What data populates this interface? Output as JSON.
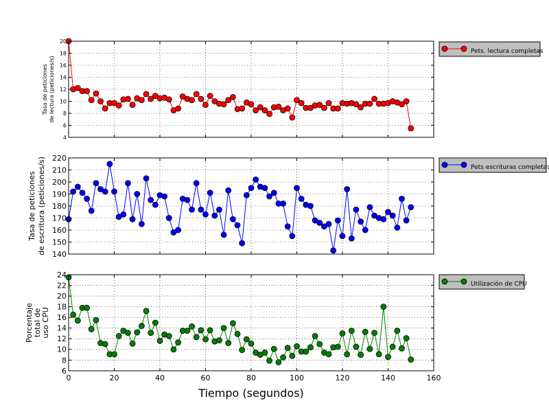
{
  "xlabel": "Tiempo (segundos)",
  "x_ticks": [
    0,
    20,
    40,
    60,
    80,
    100,
    120,
    140,
    160
  ],
  "chart_data": [
    {
      "type": "line",
      "ylabel": [
        "Tasa de peticiones",
        "de lectura (peticiones/s)"
      ],
      "xlim": [
        0,
        160
      ],
      "ylim": [
        4,
        20
      ],
      "y_ticks": [
        4,
        6,
        8,
        10,
        12,
        14,
        16,
        18,
        20
      ],
      "grid": true,
      "legend_placement": "right",
      "series": [
        {
          "name": "Pets. lectura completas",
          "color": "#ff0000",
          "x": [
            0,
            2,
            4,
            6,
            8,
            10,
            12,
            14,
            16,
            18,
            20,
            22,
            24,
            26,
            28,
            30,
            32,
            34,
            36,
            38,
            40,
            42,
            44,
            46,
            48,
            50,
            52,
            54,
            56,
            58,
            60,
            62,
            64,
            66,
            68,
            70,
            72,
            74,
            76,
            78,
            80,
            82,
            84,
            86,
            88,
            90,
            92,
            94,
            96,
            98,
            100,
            102,
            104,
            106,
            108,
            110,
            112,
            114,
            116,
            118,
            120,
            122,
            124,
            126,
            128,
            130,
            132,
            134,
            136,
            138,
            140,
            142,
            144,
            146,
            148,
            150
          ],
          "y": [
            20,
            12.0,
            12.2,
            11.7,
            11.7,
            10.2,
            11.3,
            10.0,
            8.8,
            9.7,
            9.7,
            9.3,
            10.3,
            10.4,
            9.4,
            10.5,
            10.2,
            11.2,
            10.4,
            10.9,
            10.5,
            10.6,
            10.3,
            8.5,
            8.8,
            10.8,
            10.4,
            10.2,
            11.2,
            10.4,
            9.4,
            10.9,
            10.0,
            9.6,
            9.5,
            10.2,
            10.7,
            8.7,
            8.8,
            9.8,
            9.5,
            8.5,
            9.0,
            8.5,
            7.9,
            9.0,
            9.1,
            8.5,
            8.8,
            7.3,
            10.2,
            9.7,
            8.9,
            8.9,
            9.3,
            9.4,
            8.9,
            9.7,
            8.8,
            8.8,
            9.7,
            9.6,
            9.7,
            9.5,
            9.0,
            9.6,
            9.6,
            10.4,
            9.6,
            9.6,
            9.7,
            10.0,
            9.8,
            9.5,
            10.0,
            5.5
          ]
        }
      ]
    },
    {
      "type": "line",
      "ylabel": [
        "Tasa de peticiones",
        "de escritura (peticiones/s)"
      ],
      "xlim": [
        0,
        160
      ],
      "ylim": [
        140,
        220
      ],
      "y_ticks": [
        140,
        150,
        160,
        170,
        180,
        190,
        200,
        210,
        220
      ],
      "grid": true,
      "legend_placement": "right",
      "series": [
        {
          "name": "Pets escrituras completas",
          "color": "#0000ff",
          "x": [
            0,
            2,
            4,
            6,
            8,
            10,
            12,
            14,
            16,
            18,
            20,
            22,
            24,
            26,
            28,
            30,
            32,
            34,
            36,
            38,
            40,
            42,
            44,
            46,
            48,
            50,
            52,
            54,
            56,
            58,
            60,
            62,
            64,
            66,
            68,
            70,
            72,
            74,
            76,
            78,
            80,
            82,
            84,
            86,
            88,
            90,
            92,
            94,
            96,
            98,
            100,
            102,
            104,
            106,
            108,
            110,
            112,
            114,
            116,
            118,
            120,
            122,
            124,
            126,
            128,
            130,
            132,
            134,
            136,
            138,
            140,
            142,
            144,
            146,
            148,
            150
          ],
          "y": [
            169,
            192,
            196,
            191,
            186,
            176,
            199,
            194,
            192,
            215,
            192,
            171,
            173,
            199,
            169,
            190,
            165,
            203,
            185,
            181,
            189,
            188,
            170,
            158,
            160,
            186,
            185,
            177,
            199,
            177,
            173,
            191,
            172,
            177,
            156,
            193,
            169,
            164,
            149,
            189,
            195,
            202,
            196,
            195,
            188,
            191,
            182,
            182,
            163,
            155,
            195,
            186,
            181,
            180,
            168,
            166,
            163,
            165,
            143,
            168,
            155,
            194,
            153,
            177,
            167,
            160,
            179,
            172,
            170,
            169,
            175,
            172,
            162,
            186,
            168,
            179
          ]
        }
      ]
    },
    {
      "type": "line",
      "ylabel": [
        "Porcentaje",
        "total de",
        "uso CPU"
      ],
      "xlim": [
        0,
        160
      ],
      "ylim": [
        6,
        24
      ],
      "y_ticks": [
        6,
        8,
        10,
        12,
        14,
        16,
        18,
        20,
        22,
        24
      ],
      "grid": true,
      "legend_placement": "right",
      "series": [
        {
          "name": "Utilización de CPU",
          "color": "#008000",
          "x": [
            0,
            2,
            4,
            6,
            8,
            10,
            12,
            14,
            16,
            18,
            20,
            22,
            24,
            26,
            28,
            30,
            32,
            34,
            36,
            38,
            40,
            42,
            44,
            46,
            48,
            50,
            52,
            54,
            56,
            58,
            60,
            62,
            64,
            66,
            68,
            70,
            72,
            74,
            76,
            78,
            80,
            82,
            84,
            86,
            88,
            90,
            92,
            94,
            96,
            98,
            100,
            102,
            104,
            106,
            108,
            110,
            112,
            114,
            116,
            118,
            120,
            122,
            124,
            126,
            128,
            130,
            132,
            134,
            136,
            138,
            140,
            142,
            144,
            146,
            148,
            150
          ],
          "y": [
            23.5,
            16.5,
            15.4,
            17.8,
            17.8,
            13.8,
            15.5,
            11.2,
            11.0,
            9.1,
            9.1,
            12.5,
            13.5,
            13.1,
            11.1,
            13.2,
            14.4,
            17.2,
            13.1,
            15.0,
            11.6,
            12.8,
            12.5,
            10.0,
            11.3,
            13.5,
            13.5,
            14.3,
            12.3,
            13.6,
            11.9,
            13.6,
            11.5,
            11.7,
            14.0,
            11.2,
            14.9,
            12.9,
            9.9,
            11.9,
            11.1,
            9.4,
            9.0,
            9.4,
            7.9,
            10.1,
            7.6,
            8.5,
            10.3,
            8.8,
            10.6,
            9.6,
            9.6,
            10.4,
            12.5,
            11.0,
            9.4,
            9.1,
            10.4,
            10.5,
            13.0,
            9.1,
            13.5,
            10.5,
            9.0,
            13.3,
            10.1,
            13.1,
            9.1,
            18.0,
            8.6,
            10.5,
            13.5,
            10.2,
            12.1,
            8.1
          ]
        }
      ]
    }
  ]
}
